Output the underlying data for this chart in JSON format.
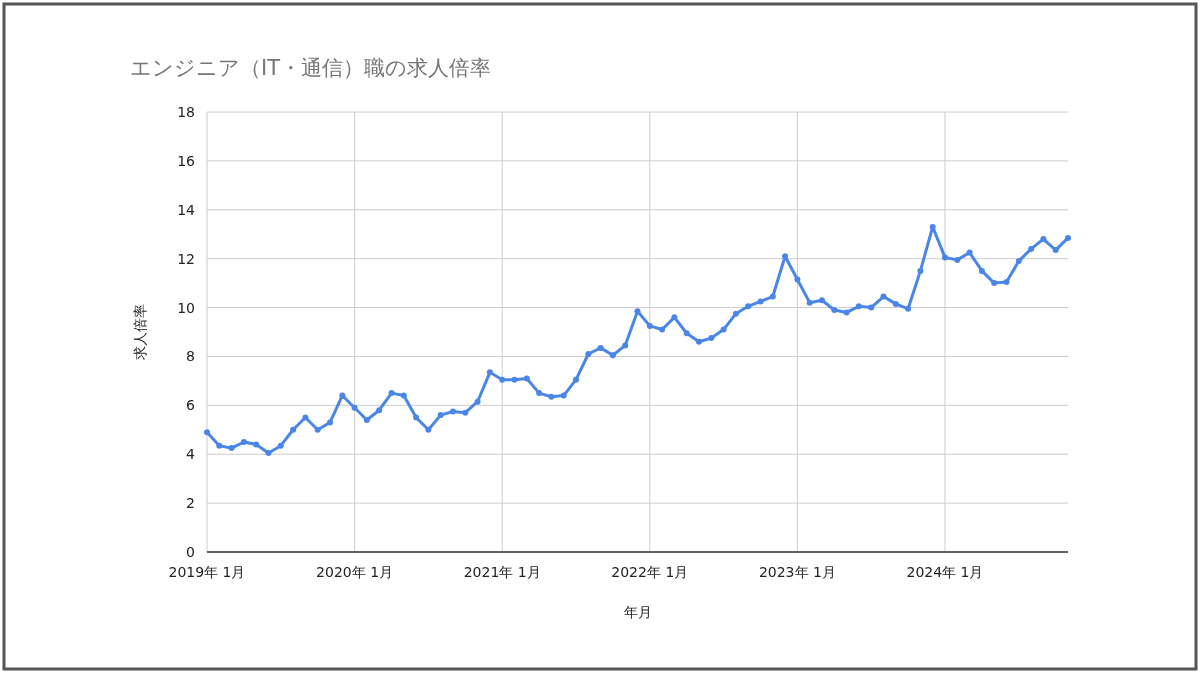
{
  "chart_data": {
    "type": "line",
    "title": "エンジニア（IT・通信）職の求人倍率",
    "xlabel": "年月",
    "ylabel": "求人倍率",
    "x": [
      "2019-01",
      "2019-02",
      "2019-03",
      "2019-04",
      "2019-05",
      "2019-06",
      "2019-07",
      "2019-08",
      "2019-09",
      "2019-10",
      "2019-11",
      "2019-12",
      "2020-01",
      "2020-02",
      "2020-03",
      "2020-04",
      "2020-05",
      "2020-06",
      "2020-07",
      "2020-08",
      "2020-09",
      "2020-10",
      "2020-11",
      "2020-12",
      "2021-01",
      "2021-02",
      "2021-03",
      "2021-04",
      "2021-05",
      "2021-06",
      "2021-07",
      "2021-08",
      "2021-09",
      "2021-10",
      "2021-11",
      "2021-12",
      "2022-01",
      "2022-02",
      "2022-03",
      "2022-04",
      "2022-05",
      "2022-06",
      "2022-07",
      "2022-08",
      "2022-09",
      "2022-10",
      "2022-11",
      "2022-12",
      "2023-01",
      "2023-02",
      "2023-03",
      "2023-04",
      "2023-05",
      "2023-06",
      "2023-07",
      "2023-08",
      "2023-09",
      "2023-10",
      "2023-11",
      "2023-12",
      "2024-01",
      "2024-02",
      "2024-03",
      "2024-04",
      "2024-05",
      "2024-06",
      "2024-07",
      "2024-08",
      "2024-09",
      "2024-10",
      "2024-11"
    ],
    "series": [
      {
        "color": "#4a86e8",
        "values": [
          4.9,
          4.35,
          4.25,
          4.5,
          4.4,
          4.05,
          4.35,
          5.0,
          5.5,
          5.0,
          5.3,
          6.4,
          5.9,
          5.4,
          5.8,
          6.5,
          6.4,
          5.5,
          5.0,
          5.6,
          5.75,
          5.7,
          6.15,
          7.35,
          7.05,
          7.05,
          7.1,
          6.5,
          6.35,
          6.4,
          7.05,
          8.1,
          8.35,
          8.05,
          8.45,
          9.85,
          9.25,
          9.1,
          9.6,
          8.95,
          8.6,
          8.75,
          9.1,
          9.75,
          10.05,
          10.25,
          10.45,
          12.1,
          11.15,
          10.2,
          10.3,
          9.9,
          9.8,
          10.05,
          10.0,
          10.45,
          10.15,
          9.95,
          11.5,
          13.3,
          12.05,
          11.95,
          12.25,
          11.5,
          11.0,
          11.05,
          11.9,
          12.4,
          12.8,
          12.35,
          12.85
        ]
      }
    ],
    "xlim": [
      "2019-01",
      "2024-11"
    ],
    "xticks": [
      {
        "value": "2019-01",
        "label": "2019年 1月"
      },
      {
        "value": "2020-01",
        "label": "2020年 1月"
      },
      {
        "value": "2021-01",
        "label": "2021年 1月"
      },
      {
        "value": "2022-01",
        "label": "2022年 1月"
      },
      {
        "value": "2023-01",
        "label": "2023年 1月"
      },
      {
        "value": "2024-01",
        "label": "2024年 1月"
      }
    ],
    "ylim": [
      0,
      18
    ],
    "yticks": [
      0,
      2,
      4,
      6,
      8,
      10,
      12,
      14,
      16,
      18
    ],
    "grid": true,
    "marker": "circle",
    "line_style": "solid"
  }
}
